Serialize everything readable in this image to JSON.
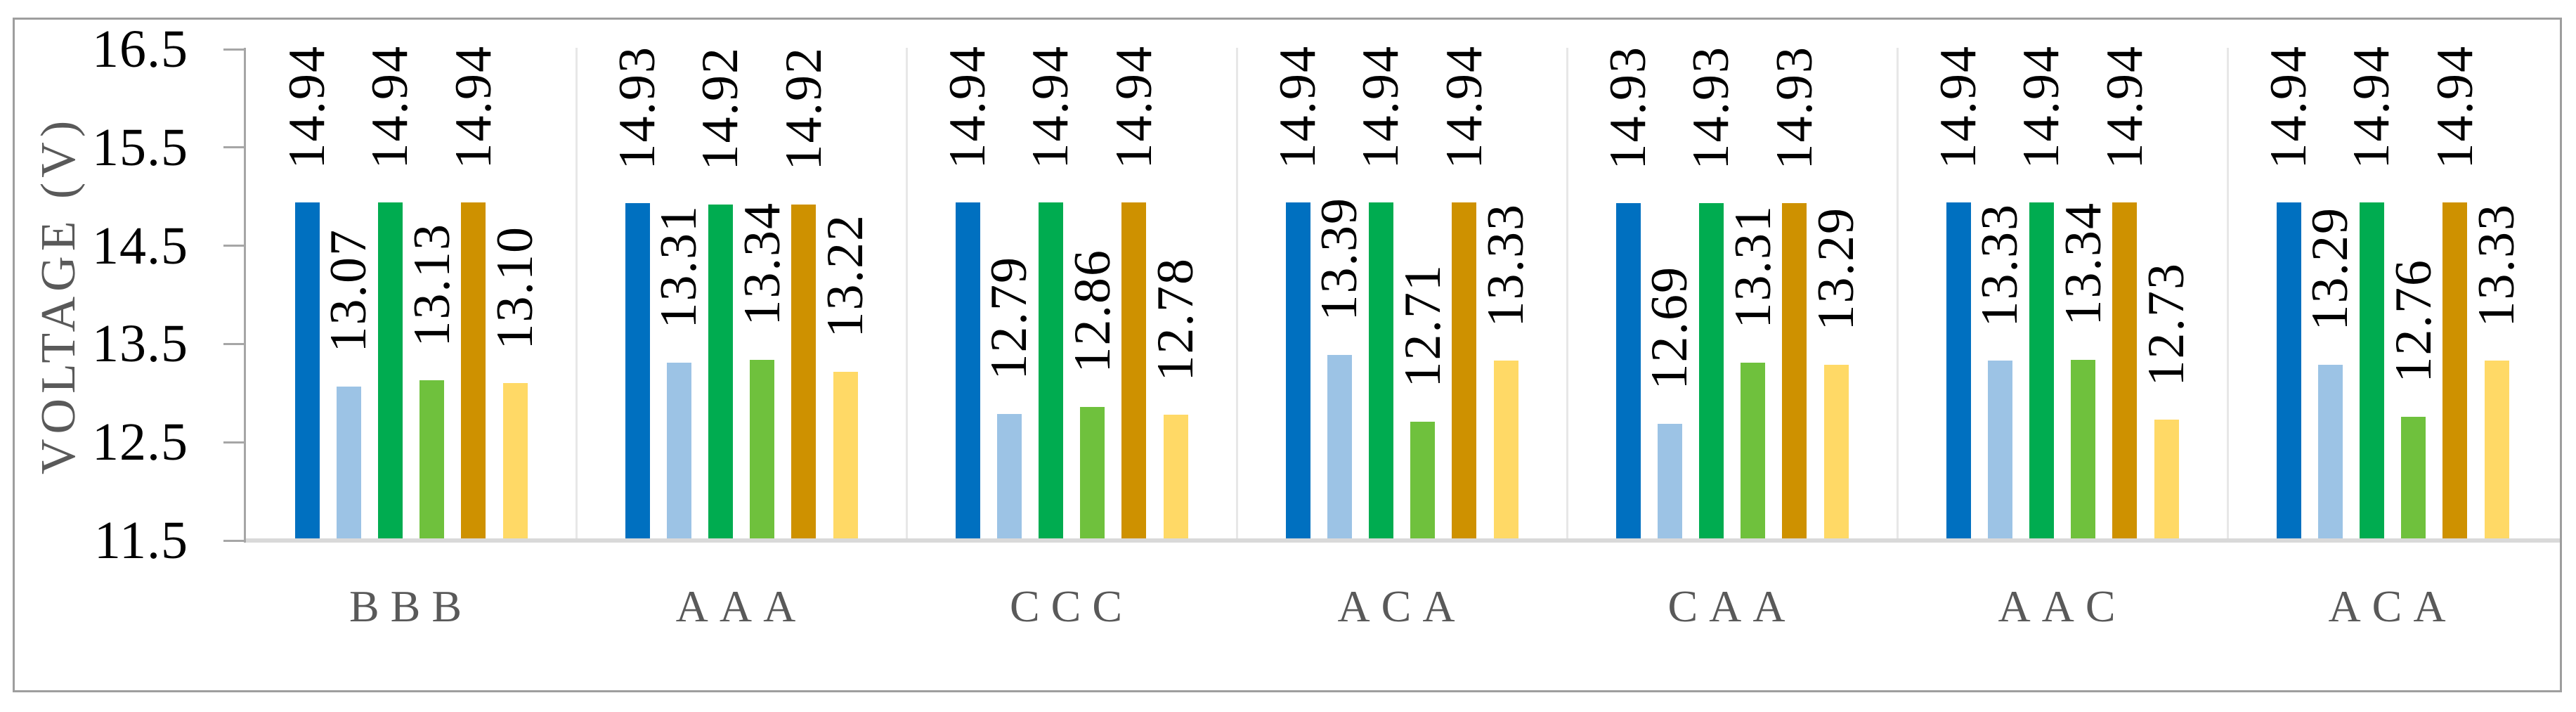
{
  "chart_data": {
    "type": "bar",
    "title": "",
    "xlabel": "",
    "ylabel": "VOLTAGE (V)",
    "ylim": [
      11.5,
      16.5
    ],
    "yticks": [
      "16.5",
      "15.5",
      "14.5",
      "13.5",
      "12.5",
      "11.5"
    ],
    "categories": [
      "BBB",
      "AAA",
      "CCC",
      "ACA",
      "CAA",
      "AAC",
      "ACA"
    ],
    "series": [
      {
        "name": "dark-blue",
        "color": "#0070C0",
        "values": [
          "14.94",
          "14.93",
          "14.94",
          "14.94",
          "14.93",
          "14.94",
          "14.94"
        ]
      },
      {
        "name": "light-blue",
        "color": "#9CC3E5",
        "values": [
          "13.07",
          "13.31",
          "12.79",
          "13.39",
          "12.69",
          "13.33",
          "13.29"
        ]
      },
      {
        "name": "green",
        "color": "#00AC50",
        "values": [
          "14.94",
          "14.92",
          "14.94",
          "14.94",
          "14.93",
          "14.94",
          "14.94"
        ]
      },
      {
        "name": "light-green",
        "color": "#6FC13D",
        "values": [
          "13.13",
          "13.34",
          "12.86",
          "12.71",
          "13.31",
          "13.34",
          "12.76"
        ]
      },
      {
        "name": "gold",
        "color": "#CE9100",
        "values": [
          "14.94",
          "14.92",
          "14.94",
          "14.94",
          "14.93",
          "14.94",
          "14.94"
        ]
      },
      {
        "name": "light-yellow",
        "color": "#FFD966",
        "values": [
          "13.10",
          "13.22",
          "12.78",
          "13.33",
          "13.29",
          "12.73",
          "13.33"
        ]
      }
    ],
    "legend": "none",
    "grid": "vertical-category-separator-lines",
    "data_labels": "rotated-90-outside-end"
  },
  "colors": {
    "background": "#FFFFFF",
    "chart_border": "#9E9E9E",
    "axis_line": "#A6A6A6",
    "tick_mark": "#A6A6A6",
    "x_baseline": "#D9D9D9",
    "category_separator": "#E7E7E7",
    "tick_label": "#000000",
    "data_label": "#000000",
    "category_label": "#595959",
    "axis_title": "#595959"
  }
}
